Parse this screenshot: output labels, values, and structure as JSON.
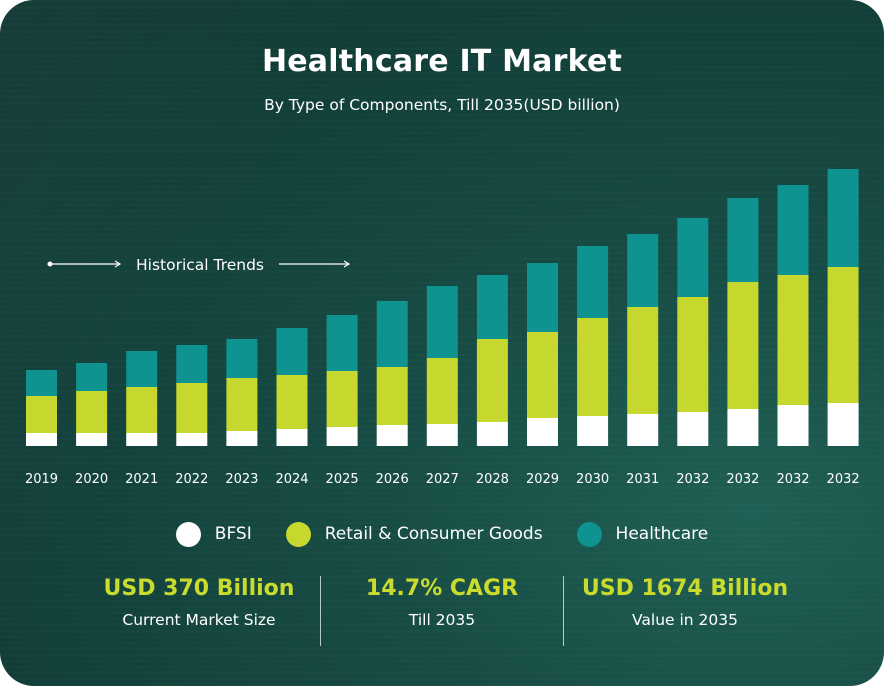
{
  "header": {
    "title": "Healthcare IT Market",
    "subtitle": "By Type of Components, Till 2035(USD billion)"
  },
  "annotation": "Historical Trends",
  "colors": {
    "bfsi": "#ffffff",
    "retail": "#c6d82e",
    "healthcare": "#0f9391"
  },
  "chart_data": {
    "type": "bar",
    "stacked": true,
    "title": "Healthcare IT Market",
    "subtitle": "By Type of Components, Till 2035(USD billion)",
    "categories": [
      "2019",
      "2020",
      "2021",
      "2022",
      "2023",
      "2024",
      "2025",
      "2026",
      "2027",
      "2028",
      "2029",
      "2030",
      "2031",
      "2032",
      "2032",
      "2032",
      "2032"
    ],
    "series": [
      {
        "name": "BFSI",
        "values": [
          13,
          13,
          13,
          13,
          15,
          17,
          19,
          21,
          22,
          24,
          28,
          30,
          32,
          34,
          37,
          41,
          43
        ]
      },
      {
        "name": "Retail & Consumer Goods",
        "values": [
          37,
          42,
          46,
          50,
          53,
          54,
          56,
          58,
          66,
          83,
          86,
          98,
          107,
          115,
          127,
          130,
          136
        ]
      },
      {
        "name": "Healthcare",
        "values": [
          26,
          28,
          36,
          38,
          39,
          47,
          56,
          66,
          72,
          64,
          69,
          72,
          73,
          79,
          84,
          90,
          98
        ]
      }
    ],
    "ylim": [
      0,
      300
    ],
    "grid": false,
    "legend_position": "bottom"
  },
  "legend": [
    {
      "label": "BFSI",
      "color": "#ffffff"
    },
    {
      "label": "Retail & Consumer Goods",
      "color": "#c6d82e"
    },
    {
      "label": "Healthcare",
      "color": "#0f9391"
    }
  ],
  "stats": [
    {
      "value": "USD 370 Billion",
      "label": "Current Market Size"
    },
    {
      "value": "14.7% CAGR",
      "label": "Till 2035"
    },
    {
      "value": "USD 1674 Billion",
      "label": "Value in 2035"
    }
  ]
}
